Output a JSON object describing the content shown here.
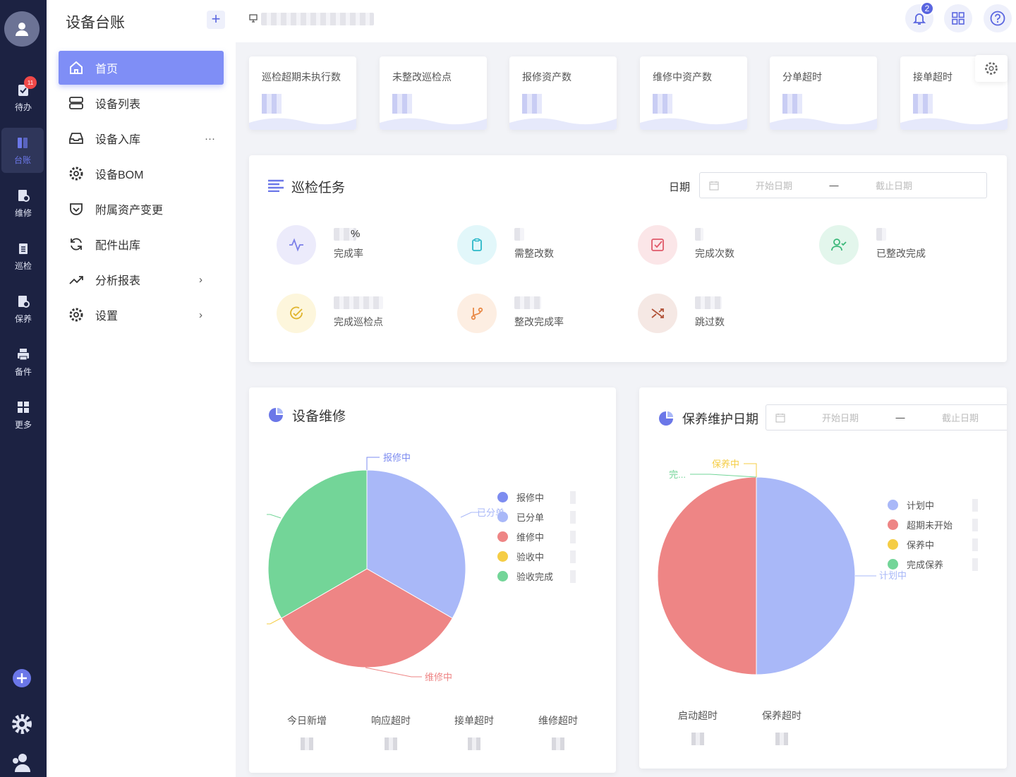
{
  "rail": {
    "badge": "11",
    "items": [
      {
        "label": "待办",
        "icon": "clipboard-check-icon"
      },
      {
        "label": "台账",
        "icon": "ledger-icon"
      },
      {
        "label": "维修",
        "icon": "repair-icon"
      },
      {
        "label": "巡检",
        "icon": "inspection-icon"
      },
      {
        "label": "保养",
        "icon": "maintenance-icon"
      },
      {
        "label": "备件",
        "icon": "printer-icon"
      },
      {
        "label": "更多",
        "icon": "grid-icon"
      }
    ]
  },
  "sidebar": {
    "title": "设备台账",
    "add_label": "+",
    "items": [
      {
        "label": "首页",
        "icon": "home-icon"
      },
      {
        "label": "设备列表",
        "icon": "server-icon"
      },
      {
        "label": "设备入库",
        "icon": "inbox-icon",
        "more": "···"
      },
      {
        "label": "设备BOM",
        "icon": "gear-icon"
      },
      {
        "label": "附属资产变更",
        "icon": "pocket-icon"
      },
      {
        "label": "配件出库",
        "icon": "refresh-icon"
      },
      {
        "label": "分析报表",
        "icon": "trend-icon",
        "chevron": "›"
      },
      {
        "label": "设置",
        "icon": "settings-icon",
        "chevron": "›"
      }
    ]
  },
  "topbar": {
    "notification_count": "2"
  },
  "stats": [
    {
      "label": "巡检超期未执行数"
    },
    {
      "label": "未整改巡检点"
    },
    {
      "label": "报修资产数"
    },
    {
      "label": "维修中资产数"
    },
    {
      "label": "分单超时"
    },
    {
      "label": "接单超时"
    }
  ],
  "inspection": {
    "title": "巡检任务",
    "date_label": "日期",
    "start_placeholder": "开始日期",
    "separator": "—",
    "end_placeholder": "截止日期",
    "kpis": [
      {
        "label": "完成率",
        "suffix": "%",
        "color": "#7b7fe8",
        "bg": "#ecebfb"
      },
      {
        "label": "需整改数",
        "color": "#2bb8c8",
        "bg": "#e2f7fa"
      },
      {
        "label": "完成次数",
        "color": "#e05a6a",
        "bg": "#fbe6e8"
      },
      {
        "label": "已整改完成",
        "color": "#3cb87a",
        "bg": "#e3f6ec"
      },
      {
        "label": "完成巡检点",
        "color": "#e0b42c",
        "bg": "#fdf6dc"
      },
      {
        "label": "整改完成率",
        "color": "#e98a48",
        "bg": "#fdeee2"
      },
      {
        "label": "跳过数",
        "color": "#b2543a",
        "bg": "#f5e8e4"
      }
    ]
  },
  "repair": {
    "title": "设备维修",
    "legend": [
      {
        "name": "报修中",
        "color": "#7d8cf0"
      },
      {
        "name": "已分单",
        "color": "#a9b8f8"
      },
      {
        "name": "维修中",
        "color": "#ee8585"
      },
      {
        "name": "验收中",
        "color": "#f5cd45"
      },
      {
        "name": "验收完成",
        "color": "#73d598"
      }
    ],
    "labels": {
      "top": "报修中",
      "right": "已分单",
      "bottom": "维修中"
    },
    "footer": [
      "今日新增",
      "响应超时",
      "接单超时",
      "维修超时"
    ]
  },
  "maintenance": {
    "title": "保养维护日期",
    "start_placeholder": "开始日期",
    "separator": "—",
    "end_placeholder": "截止日期",
    "legend": [
      {
        "name": "计划中",
        "color": "#a9b8f8"
      },
      {
        "name": "超期未开始",
        "color": "#ee8585"
      },
      {
        "name": "保养中",
        "color": "#f5cd45"
      },
      {
        "name": "完成保养",
        "color": "#73d598"
      }
    ],
    "labels": {
      "top": "保养中",
      "left": "完...",
      "right": "计划中"
    },
    "footer": [
      "启动超时",
      "保养超时"
    ]
  },
  "chart_data": [
    {
      "type": "pie",
      "title": "设备维修",
      "categories": [
        "报修中",
        "已分单",
        "维修中",
        "验收中",
        "验收完成"
      ],
      "values": [
        1,
        0,
        1,
        0,
        1
      ]
    },
    {
      "type": "pie",
      "title": "保养维护日期",
      "categories": [
        "计划中",
        "超期未开始",
        "保养中",
        "完成保养"
      ],
      "values": [
        1,
        1,
        0,
        0
      ]
    }
  ]
}
